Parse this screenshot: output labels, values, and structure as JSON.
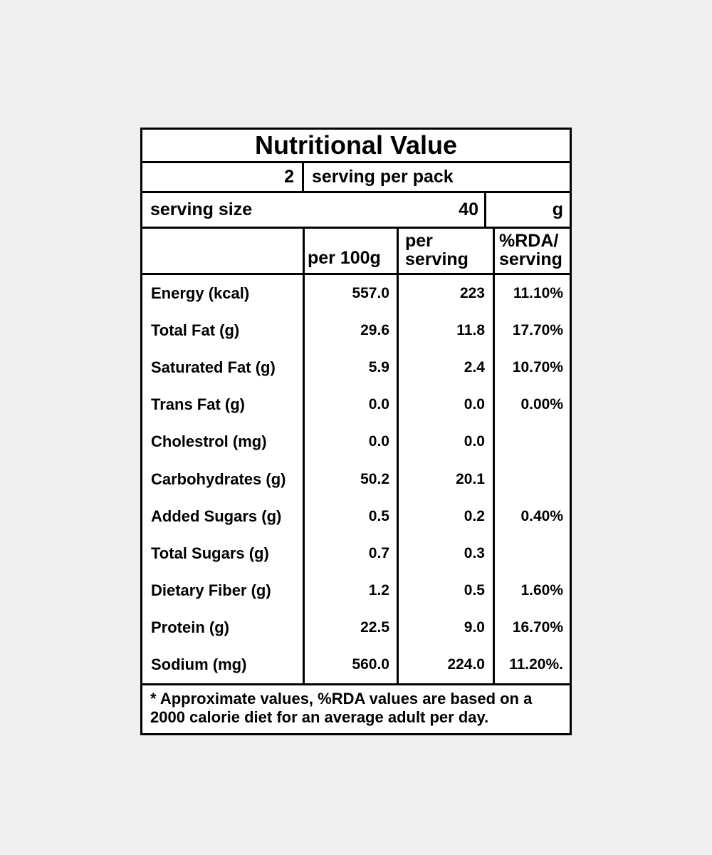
{
  "page": {
    "background_color": "#efefef",
    "table_border_color": "#000000"
  },
  "table": {
    "title": "Nutritional Value",
    "servings_row": {
      "count": "2",
      "label": "serving per pack"
    },
    "serving_size_row": {
      "label": "serving size",
      "value": "40",
      "unit": "g"
    },
    "column_headers": {
      "nutrient": "",
      "per_100g": "per 100g",
      "per_serving_line1": "per",
      "per_serving_line2": "serving",
      "rda_line1": "%RDA/",
      "rda_line2": "serving"
    },
    "rows": [
      {
        "label": "Energy (kcal)",
        "per_100g": "557.0",
        "per_serving": "223",
        "rda_per_serving": "11.10%"
      },
      {
        "label": "Total Fat (g)",
        "per_100g": "29.6",
        "per_serving": "11.8",
        "rda_per_serving": "17.70%"
      },
      {
        "label": "Saturated Fat (g)",
        "per_100g": "5.9",
        "per_serving": "2.4",
        "rda_per_serving": "10.70%"
      },
      {
        "label": "Trans Fat (g)",
        "per_100g": "0.0",
        "per_serving": "0.0",
        "rda_per_serving": "0.00%"
      },
      {
        "label": "Cholestrol (mg)",
        "per_100g": "0.0",
        "per_serving": "0.0",
        "rda_per_serving": ""
      },
      {
        "label": "Carbohydrates (g)",
        "per_100g": "50.2",
        "per_serving": "20.1",
        "rda_per_serving": ""
      },
      {
        "label": "Added Sugars (g)",
        "per_100g": "0.5",
        "per_serving": "0.2",
        "rda_per_serving": "0.40%"
      },
      {
        "label": "Total Sugars (g)",
        "per_100g": "0.7",
        "per_serving": "0.3",
        "rda_per_serving": ""
      },
      {
        "label": "Dietary Fiber (g)",
        "per_100g": "1.2",
        "per_serving": "0.5",
        "rda_per_serving": "1.60%"
      },
      {
        "label": "Protein (g)",
        "per_100g": "22.5",
        "per_serving": "9.0",
        "rda_per_serving": "16.70%"
      },
      {
        "label": "Sodium (mg)",
        "per_100g": "560.0",
        "per_serving": "224.0",
        "rda_per_serving": "11.20%."
      }
    ],
    "footnote": {
      "line1": "* Approximate values, %RDA values are based on a",
      "line2": "2000 calorie diet for an average adult per day."
    }
  }
}
